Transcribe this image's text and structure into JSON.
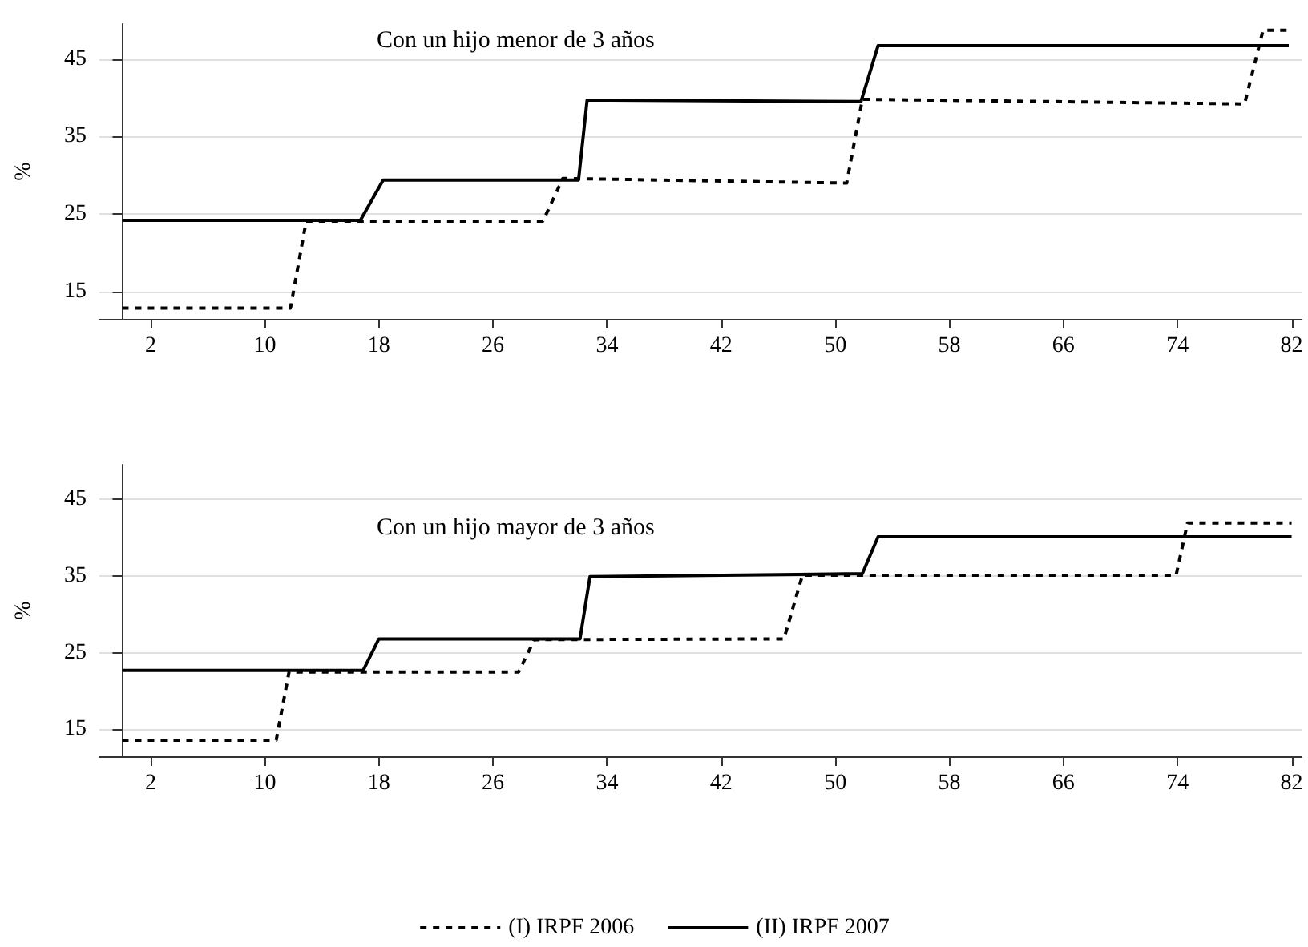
{
  "chart_data": [
    {
      "type": "line",
      "title": "Con un hijo menor de 3 años",
      "ylabel": "%",
      "xlim": [
        -1.6,
        82.7
      ],
      "xticks": [
        2,
        10,
        18,
        26,
        34,
        42,
        50,
        58,
        66,
        74,
        82
      ],
      "ylim": [
        11.5,
        49.5
      ],
      "yticks": [
        15,
        25,
        35,
        45
      ],
      "grid": "y",
      "legend": false,
      "marker": "none",
      "series": [
        {
          "color": "#000000",
          "line_style": "dashed",
          "x": [
            0,
            11.8,
            12.9,
            29.5,
            30.9,
            50.8,
            51.9,
            78.7,
            80,
            81.8
          ],
          "values": [
            12.9,
            12.9,
            24.1,
            24.1,
            29.6,
            29.0,
            39.8,
            39.2,
            48.7,
            48.7
          ]
        },
        {
          "color": "#000000",
          "line_style": "solid",
          "x": [
            0,
            16.7,
            18.3,
            32,
            32.6,
            51.8,
            53,
            81.8
          ],
          "values": [
            24.2,
            24.2,
            29.4,
            29.4,
            39.7,
            39.5,
            46.7,
            46.7
          ]
        }
      ]
    },
    {
      "type": "line",
      "title": "Con un hijo mayor de 3 años",
      "ylabel": "%",
      "xlim": [
        -1.6,
        82.7
      ],
      "xticks": [
        2,
        10,
        18,
        26,
        34,
        42,
        50,
        58,
        66,
        74,
        82
      ],
      "ylim": [
        11.5,
        49.5
      ],
      "yticks": [
        15,
        25,
        35,
        45
      ],
      "grid": "y",
      "legend": "bottom",
      "marker": "none",
      "series": [
        {
          "name": "(I) IRPF 2006",
          "color": "#000000",
          "line_style": "dashed",
          "x": [
            0,
            10.8,
            11.7,
            27.8,
            28.9,
            46.4,
            47.7,
            73.9,
            74.7,
            82
          ],
          "values": [
            13.6,
            13.6,
            22.5,
            22.5,
            26.7,
            26.8,
            35.1,
            35.1,
            41.9,
            41.9
          ]
        },
        {
          "name": "(II) IRPF 2007",
          "color": "#000000",
          "line_style": "solid",
          "x": [
            0,
            16.9,
            18,
            32.1,
            32.8,
            51.9,
            53,
            82
          ],
          "values": [
            22.7,
            22.7,
            26.8,
            26.8,
            34.9,
            35.3,
            40.1,
            40.1
          ]
        }
      ]
    }
  ]
}
